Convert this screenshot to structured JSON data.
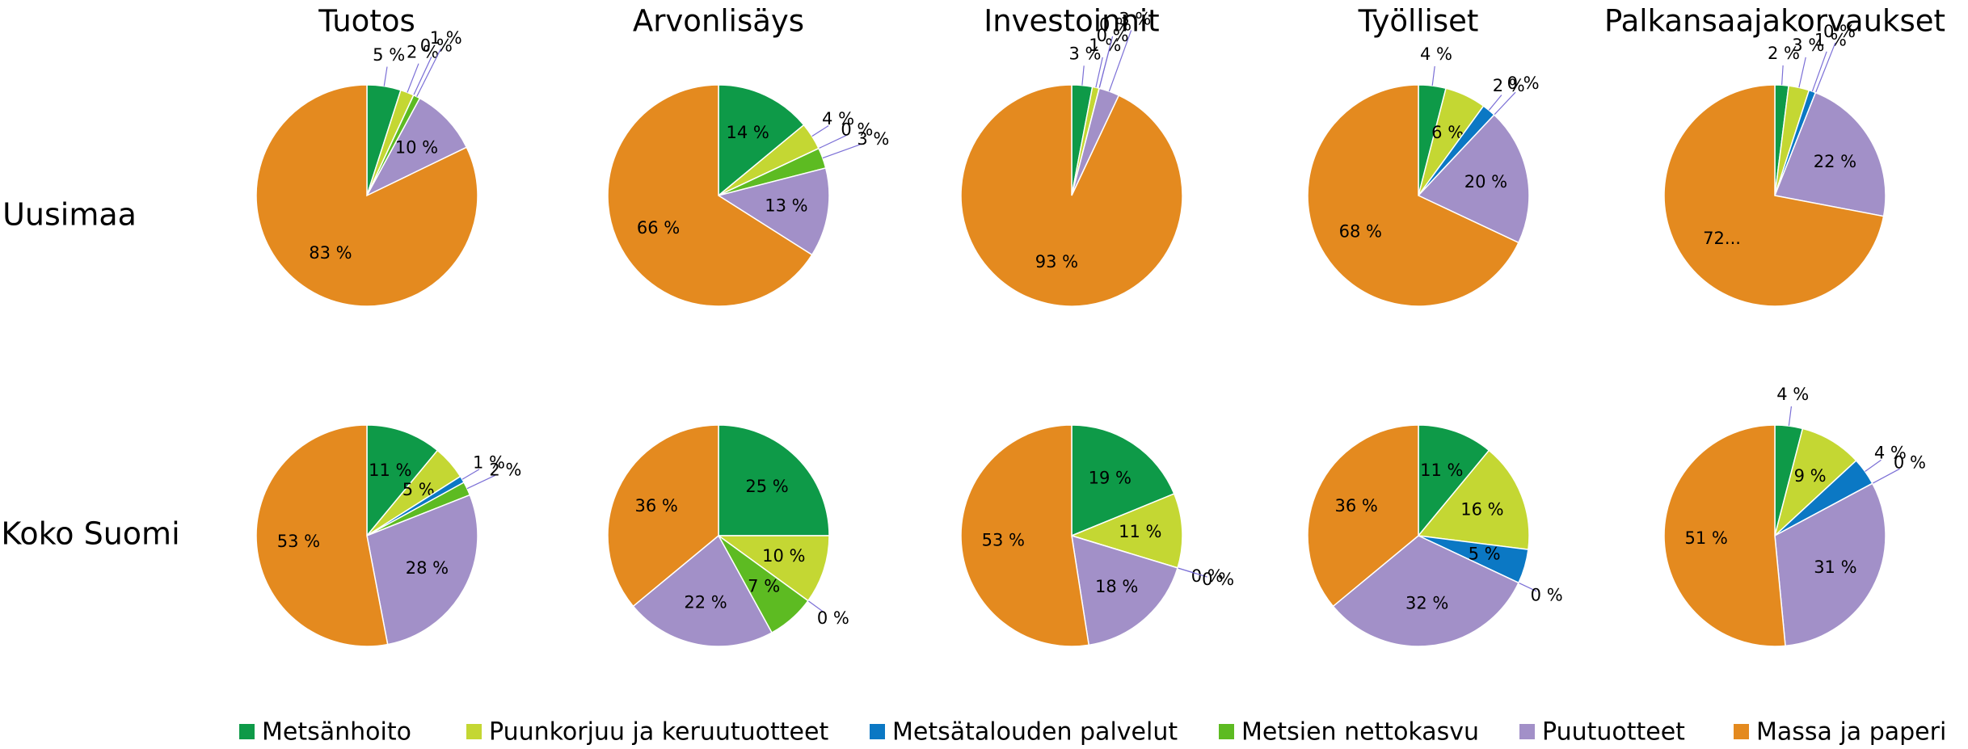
{
  "rows": [
    "Uusimaa",
    "Koko Suomi"
  ],
  "legend": [
    {
      "name": "Metsänhoito",
      "color": "#0e9a48"
    },
    {
      "name": "Puunkorjuu ja keruutuotteet",
      "color": "#c4d733"
    },
    {
      "name": "Metsätalouden palvelut",
      "color": "#0b78c4"
    },
    {
      "name": "Metsien nettokasvu",
      "color": "#5dbb22"
    },
    {
      "name": "Puutuotteet",
      "color": "#a290c8"
    },
    {
      "name": "Massa ja paperi",
      "color": "#e48a1f"
    }
  ],
  "chart_data": [
    {
      "type": "pie",
      "title": "Tuotos",
      "values": [
        5,
        2,
        0,
        1,
        10,
        83
      ],
      "value_labels": [
        "5 %",
        "2 %",
        "0 %",
        "1 %",
        "10 %",
        "83 %"
      ]
    },
    {
      "type": "pie",
      "title": "Arvonlisäys",
      "values": [
        14,
        4,
        0,
        3,
        13,
        66
      ],
      "value_labels": [
        "14 %",
        "4 %",
        "0 %",
        "3 %",
        "13 %",
        "66 %"
      ]
    },
    {
      "type": "pie",
      "title": "Investoinnit",
      "values": [
        3,
        1,
        0,
        0,
        3,
        93
      ],
      "value_labels": [
        "3 %",
        "1 %",
        "0 %",
        "0 %",
        "3 %",
        "93 %"
      ]
    },
    {
      "type": "pie",
      "title": "Työlliset",
      "values": [
        4,
        6,
        2,
        0,
        20,
        68
      ],
      "value_labels": [
        "4 %",
        "6 %",
        "2 %",
        "0 %",
        "20 %",
        "68 %"
      ]
    },
    {
      "type": "pie",
      "title": "Palkansaajakorvaukset",
      "values": [
        2,
        3,
        1,
        0,
        22,
        72
      ],
      "value_labels": [
        "2 %",
        "3 %",
        "1 %",
        "0 %",
        "22 %",
        "72..."
      ]
    },
    {
      "type": "pie",
      "values": [
        11,
        5,
        1,
        2,
        28,
        53
      ],
      "value_labels": [
        "11 %",
        "5 %",
        "1 %",
        "2 %",
        "28 %",
        "53 %"
      ]
    },
    {
      "type": "pie",
      "values": [
        25,
        10,
        0,
        7,
        22,
        36
      ],
      "value_labels": [
        "25 %",
        "10 %",
        "0 %",
        "7 %",
        "22 %",
        "36 %"
      ]
    },
    {
      "type": "pie",
      "values": [
        19,
        11,
        0,
        0,
        18,
        53
      ],
      "value_labels": [
        "19 %",
        "11 %",
        "0 %",
        "0 %",
        "18 %",
        "53 %"
      ]
    },
    {
      "type": "pie",
      "values": [
        11,
        16,
        5,
        0,
        32,
        36
      ],
      "value_labels": [
        "11 %",
        "16 %",
        "5 %",
        "0 %",
        "32 %",
        "36 %"
      ]
    },
    {
      "type": "pie",
      "values": [
        4,
        9,
        4,
        0,
        31,
        51
      ],
      "value_labels": [
        "4 %",
        "9 %",
        "4 %",
        "0 %",
        "31 %",
        "51 %"
      ]
    }
  ]
}
